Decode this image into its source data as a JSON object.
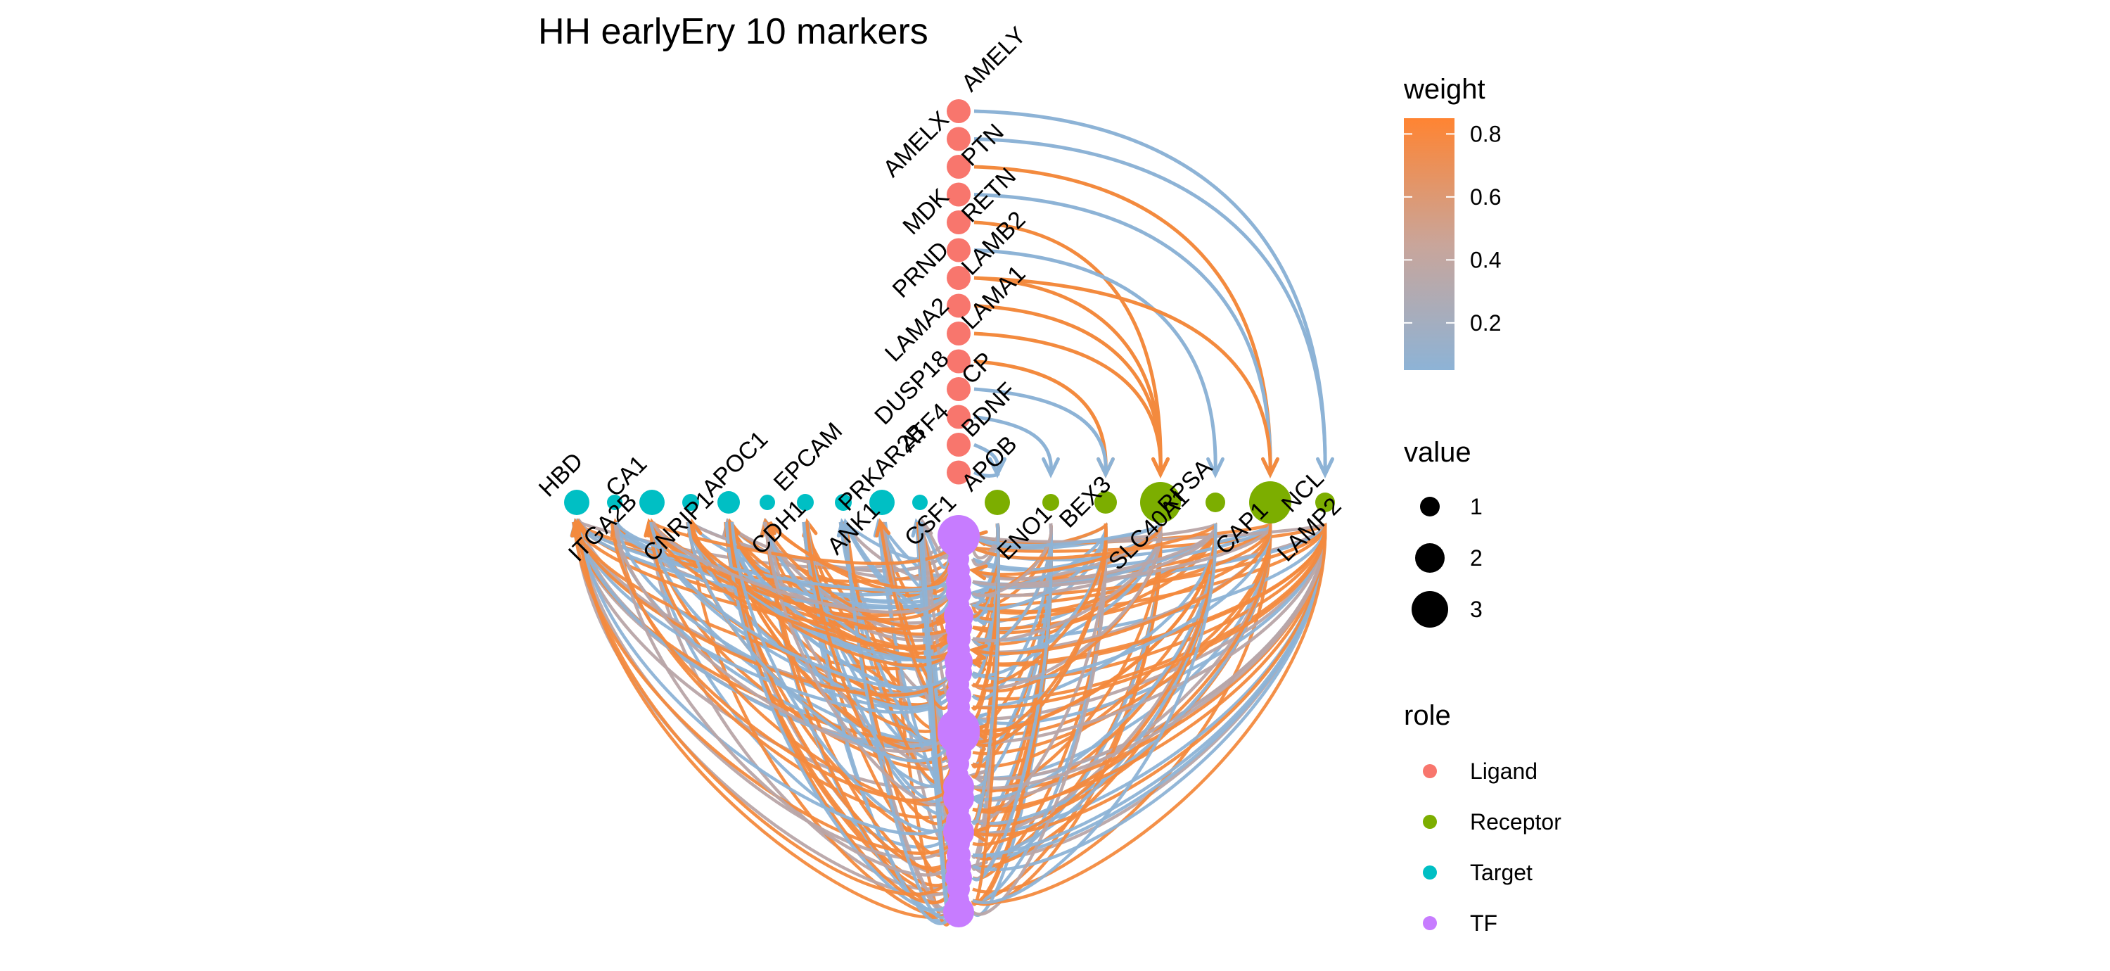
{
  "title": "HH earlyEry 10 markers",
  "colors": {
    "ligand": "#F8766D",
    "receptor": "#7CAE00",
    "target": "#00BFC4",
    "tf": "#C77CFF",
    "edge_low": "#8DB3D6",
    "edge_mid": "#B8A5A8",
    "edge_high": "#F38A3E"
  },
  "nodes": {
    "ligands": [
      "AMELY",
      "AMELX",
      "PTN",
      "MDK",
      "RETN",
      "PRND",
      "LAMB2",
      "LAMA2",
      "LAMA1",
      "DUSP18",
      "CP",
      "ATF4",
      "BDNF",
      "APOB"
    ],
    "receptors": [
      "ENO1",
      "BEX3",
      "SLC40A1",
      "RPSA",
      "CAP1",
      "NCL",
      "LAMP2"
    ],
    "targets": [
      "HBD",
      "ITGA2B",
      "CA1",
      "CNRIP1",
      "APOC1",
      "CDH1",
      "EPCAM",
      "ANK1",
      "PRKAR2B",
      "CSF1"
    ]
  },
  "legend": {
    "weight": {
      "title": "weight",
      "range": [
        0.05,
        0.85
      ],
      "ticks": [
        {
          "label": "0.8",
          "value": 0.8
        },
        {
          "label": "0.6",
          "value": 0.6
        },
        {
          "label": "0.4",
          "value": 0.4
        },
        {
          "label": "0.2",
          "value": 0.2
        }
      ]
    },
    "value": {
      "title": "value",
      "items": [
        {
          "label": "1",
          "value": 1
        },
        {
          "label": "2",
          "value": 2
        },
        {
          "label": "3",
          "value": 3
        }
      ]
    },
    "role": {
      "title": "role",
      "items": [
        {
          "label": "Ligand",
          "color": "#F8766D"
        },
        {
          "label": "Receptor",
          "color": "#7CAE00"
        },
        {
          "label": "Target",
          "color": "#00BFC4"
        },
        {
          "label": "TF",
          "color": "#C77CFF"
        }
      ]
    }
  }
}
